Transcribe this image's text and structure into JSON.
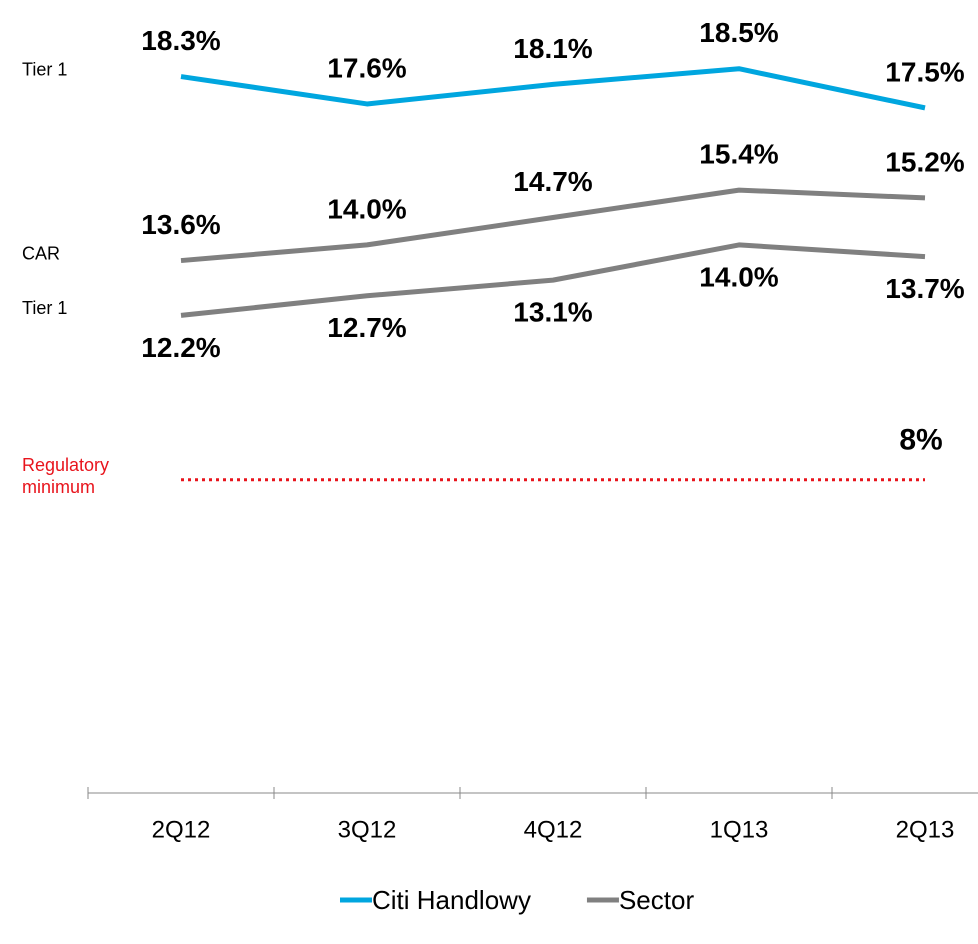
{
  "chart_data": {
    "type": "line",
    "categories": [
      "2Q12",
      "3Q12",
      "4Q12",
      "1Q13",
      "2Q13"
    ],
    "series": [
      {
        "name": "Citi Handlowy",
        "label": "Tier 1",
        "color": "#00a6df",
        "values": [
          18.3,
          17.6,
          18.1,
          18.5,
          17.5
        ],
        "value_labels": [
          "18.3%",
          "17.6%",
          "18.1%",
          "18.5%",
          "17.5%"
        ]
      },
      {
        "name": "Sector",
        "label": "CAR",
        "color": "#808080",
        "values": [
          13.6,
          14.0,
          14.7,
          15.4,
          15.2
        ],
        "value_labels": [
          "13.6%",
          "14.0%",
          "14.7%",
          "15.4%",
          "15.2%"
        ]
      },
      {
        "name": "Sector",
        "label": "Tier 1",
        "color": "#808080",
        "values": [
          12.2,
          12.7,
          13.1,
          14.0,
          13.7
        ],
        "value_labels": [
          "12.2%",
          "12.7%",
          "13.1%",
          "14.0%",
          "13.7%"
        ]
      }
    ],
    "reference_line": {
      "text": "Regulatory minimum",
      "value": 8,
      "value_label": "8%",
      "color": "#e8141c"
    },
    "ylim": [
      0,
      20
    ]
  }
}
